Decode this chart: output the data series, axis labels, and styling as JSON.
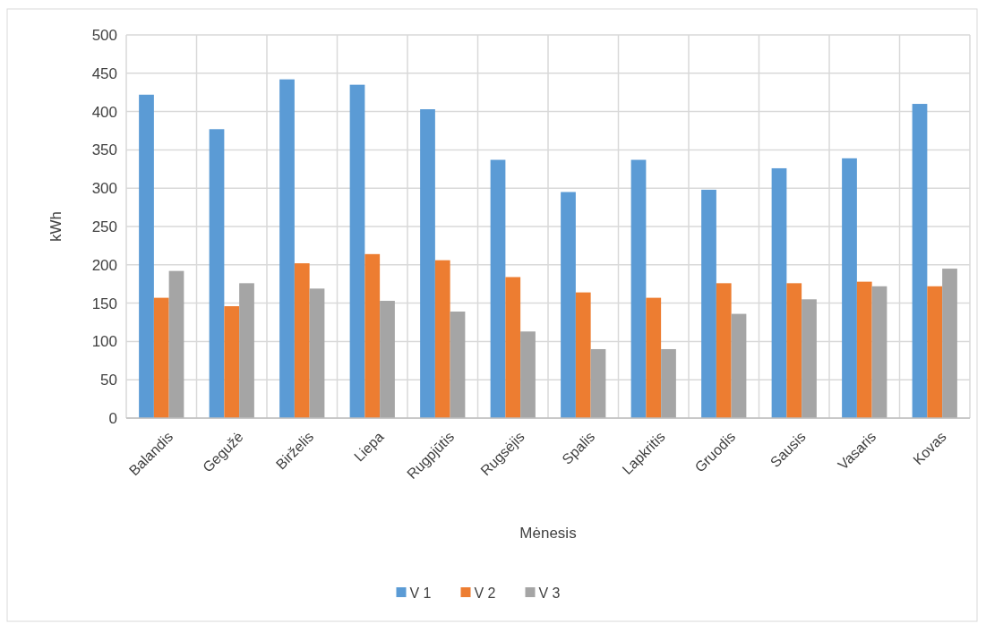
{
  "chart_data": {
    "type": "bar",
    "xlabel": "Mėnesis",
    "ylabel": "kWh",
    "categories": [
      "Balandis",
      "Gegužė",
      "Birželis",
      "Liepa",
      "Rugpjūtis",
      "Rugsėjis",
      "Spalis",
      "Lapkritis",
      "Gruodis",
      "Sausis",
      "Vasaris",
      "Kovas"
    ],
    "series": [
      {
        "name": "V 1",
        "color": "#5b9bd5",
        "values": [
          422,
          377,
          442,
          435,
          403,
          337,
          295,
          337,
          298,
          326,
          339,
          410
        ]
      },
      {
        "name": "V 2",
        "color": "#ed7d31",
        "values": [
          157,
          146,
          202,
          214,
          206,
          184,
          164,
          157,
          176,
          176,
          178,
          172
        ]
      },
      {
        "name": "V 3",
        "color": "#a5a5a5",
        "values": [
          192,
          176,
          169,
          153,
          139,
          113,
          90,
          90,
          136,
          155,
          172,
          195
        ]
      }
    ],
    "ylim": [
      0,
      500
    ],
    "yticks": [
      0,
      50,
      100,
      150,
      200,
      250,
      300,
      350,
      400,
      450,
      500
    ],
    "grid": true,
    "legend": "bottom"
  }
}
